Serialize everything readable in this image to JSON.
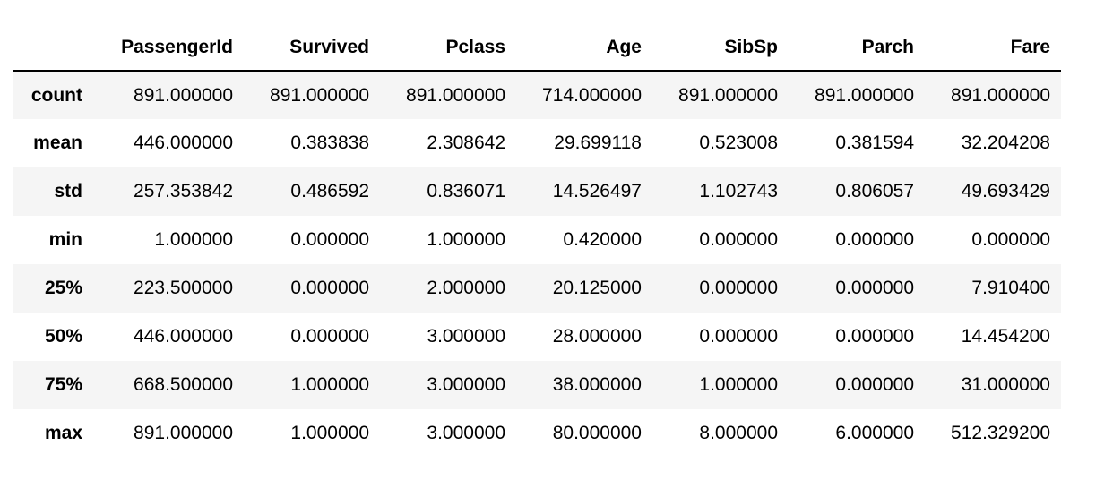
{
  "columns": [
    "PassengerId",
    "Survived",
    "Pclass",
    "Age",
    "SibSp",
    "Parch",
    "Fare"
  ],
  "rows": [
    {
      "label": "count",
      "values": [
        "891.000000",
        "891.000000",
        "891.000000",
        "714.000000",
        "891.000000",
        "891.000000",
        "891.000000"
      ]
    },
    {
      "label": "mean",
      "values": [
        "446.000000",
        "0.383838",
        "2.308642",
        "29.699118",
        "0.523008",
        "0.381594",
        "32.204208"
      ]
    },
    {
      "label": "std",
      "values": [
        "257.353842",
        "0.486592",
        "0.836071",
        "14.526497",
        "1.102743",
        "0.806057",
        "49.693429"
      ]
    },
    {
      "label": "min",
      "values": [
        "1.000000",
        "0.000000",
        "1.000000",
        "0.420000",
        "0.000000",
        "0.000000",
        "0.000000"
      ]
    },
    {
      "label": "25%",
      "values": [
        "223.500000",
        "0.000000",
        "2.000000",
        "20.125000",
        "0.000000",
        "0.000000",
        "7.910400"
      ]
    },
    {
      "label": "50%",
      "values": [
        "446.000000",
        "0.000000",
        "3.000000",
        "28.000000",
        "0.000000",
        "0.000000",
        "14.454200"
      ]
    },
    {
      "label": "75%",
      "values": [
        "668.500000",
        "1.000000",
        "3.000000",
        "38.000000",
        "1.000000",
        "0.000000",
        "31.000000"
      ]
    },
    {
      "label": "max",
      "values": [
        "891.000000",
        "1.000000",
        "3.000000",
        "80.000000",
        "8.000000",
        "6.000000",
        "512.329200"
      ]
    }
  ]
}
